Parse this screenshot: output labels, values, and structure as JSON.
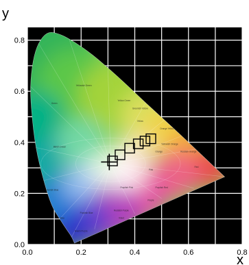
{
  "chart_data": {
    "type": "diagram",
    "xlabel": "x",
    "ylabel": "y",
    "xlim": [
      0.0,
      0.8
    ],
    "ylim": [
      0.0,
      0.85
    ],
    "x_ticks": [
      "0.0",
      "0.2",
      "0.4",
      "0.6",
      "0.8"
    ],
    "y_ticks": [
      "0.0",
      "0.2",
      "0.4",
      "0.6",
      "0.8"
    ],
    "grid": true,
    "background": "#000000",
    "grid_color": "#ffffff",
    "locus": [
      [
        0.175,
        0.005
      ],
      [
        0.165,
        0.03
      ],
      [
        0.145,
        0.06
      ],
      [
        0.12,
        0.1
      ],
      [
        0.09,
        0.15
      ],
      [
        0.06,
        0.25
      ],
      [
        0.03,
        0.38
      ],
      [
        0.015,
        0.52
      ],
      [
        0.01,
        0.62
      ],
      [
        0.02,
        0.72
      ],
      [
        0.04,
        0.79
      ],
      [
        0.075,
        0.834
      ],
      [
        0.115,
        0.826
      ],
      [
        0.155,
        0.806
      ],
      [
        0.23,
        0.754
      ],
      [
        0.3,
        0.692
      ],
      [
        0.37,
        0.625
      ],
      [
        0.44,
        0.555
      ],
      [
        0.51,
        0.488
      ],
      [
        0.575,
        0.425
      ],
      [
        0.627,
        0.373
      ],
      [
        0.67,
        0.33
      ],
      [
        0.735,
        0.265
      ]
    ],
    "white_point": [
      0.31,
      0.316
    ],
    "squares": [
      [
        0.317,
        0.327
      ],
      [
        0.345,
        0.351
      ],
      [
        0.381,
        0.377
      ],
      [
        0.413,
        0.394
      ],
      [
        0.438,
        0.405
      ],
      [
        0.46,
        0.414
      ]
    ],
    "crosshair": [
      0.305,
      0.323
    ],
    "regions": [
      "Yellowish Green",
      "Yellow Green",
      "Greenish Yellow",
      "Yellow",
      "Orange Yellow",
      "Yellowish Orange",
      "Reddish Orange",
      "Orange",
      "Red",
      "Purplish Red",
      "Pink",
      "Bluish Green",
      "Green",
      "Blue",
      "Greenish Blue",
      "Purplish Blue",
      "Reddish Purple",
      "Purplish Pink",
      "Violet",
      "Purple",
      "Bluish Purple"
    ]
  }
}
